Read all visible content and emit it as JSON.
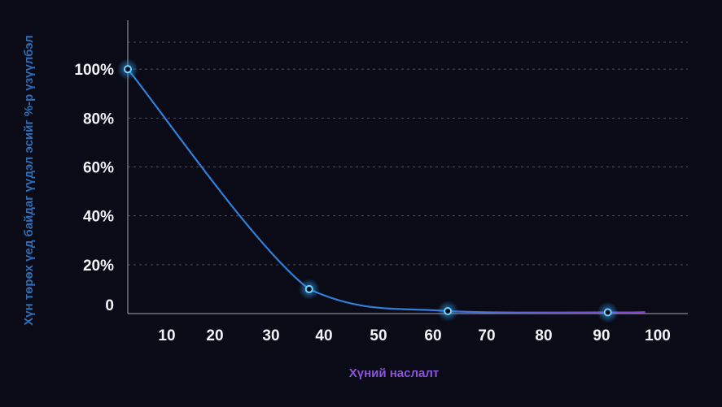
{
  "chart_data": {
    "type": "line",
    "title": "",
    "xlabel": "Хүний наслалт",
    "ylabel": "Хүн төрөх үед байдаг үүдэл эсийг %-р үзүүлбэл",
    "x_ticks": [
      "10",
      "20",
      "30",
      "40",
      "50",
      "60",
      "70",
      "80",
      "90",
      "100"
    ],
    "y_ticks": [
      "0",
      "20%",
      "40%",
      "60%",
      "80%",
      "100%"
    ],
    "xlim": [
      0,
      105
    ],
    "ylim": [
      0,
      120
    ],
    "grid": true,
    "series": [
      {
        "points": [
          {
            "x": 0,
            "y": 100
          },
          {
            "x": 34,
            "y": 10
          },
          {
            "x": 60,
            "y": 1
          },
          {
            "x": 90,
            "y": 0.5
          }
        ]
      }
    ],
    "colors": {
      "line_start": "#2f7fd8",
      "line_end": "#8a3fd0",
      "marker": "#6fd3ff"
    }
  }
}
